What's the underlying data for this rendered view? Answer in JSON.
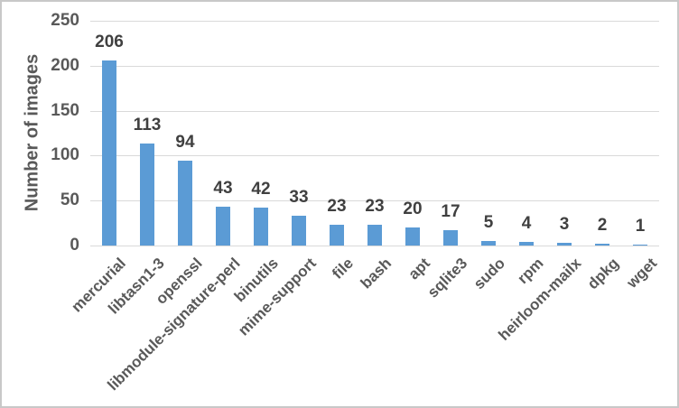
{
  "chart_data": {
    "type": "bar",
    "title": "",
    "xlabel": "",
    "ylabel": "Number of images",
    "categories": [
      "mercurial",
      "libtasn1-3",
      "openssl",
      "libmodule-signature-perl",
      "binutils",
      "mime-support",
      "file",
      "bash",
      "apt",
      "sqlite3",
      "sudo",
      "rpm",
      "heirloom-mailx",
      "dpkg",
      "wget"
    ],
    "values": [
      206,
      113,
      94,
      43,
      42,
      33,
      23,
      23,
      20,
      17,
      5,
      4,
      3,
      2,
      1
    ],
    "ylim": [
      0,
      250
    ],
    "yticks": [
      0,
      50,
      100,
      150,
      200,
      250
    ],
    "grid": "horizontal",
    "legend": "none",
    "data_labels": "outside-end",
    "x_label_rotation_deg": 45,
    "colors": {
      "bar": "#5b9bd5",
      "gridline": "#d9d9d9",
      "axis_text": "#595959",
      "data_label": "#404040",
      "background": "#ffffff",
      "border": "#c8c8c8"
    }
  }
}
